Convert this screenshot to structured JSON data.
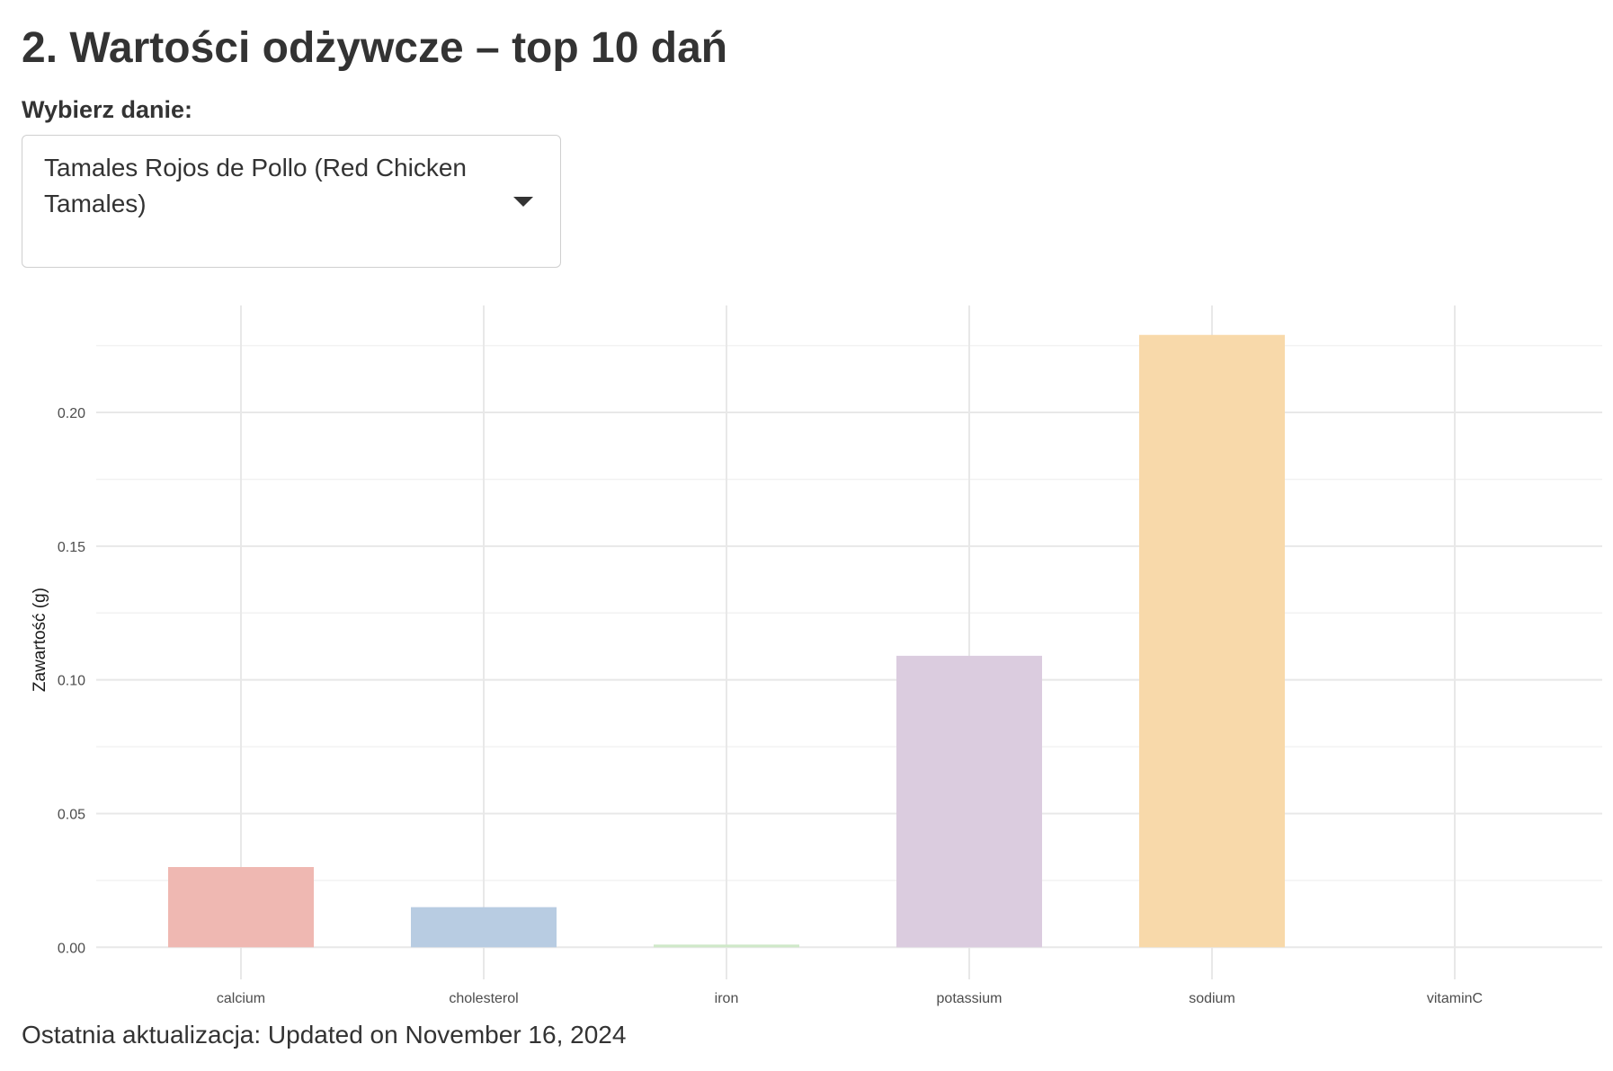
{
  "page": {
    "title": "2. Wartości odżywcze – top 10 dań"
  },
  "dish_select": {
    "label": "Wybierz danie:",
    "selected": "Tamales Rojos de Pollo (Red Chicken Tamales)"
  },
  "footer": {
    "text": "Ostatnia aktualizacja: Updated on November 16, 2024"
  },
  "chart_data": {
    "type": "bar",
    "categories": [
      "calcium",
      "cholesterol",
      "iron",
      "potassium",
      "sodium",
      "vitaminC"
    ],
    "values": [
      0.03,
      0.015,
      0.001,
      0.109,
      0.229,
      0
    ],
    "colors": [
      "#efb8b2",
      "#b8cce2",
      "#cfe8c8",
      "#dbccdf",
      "#f8d9aa",
      "#fbfbd0"
    ],
    "xlabel": "",
    "ylabel": "Zawartość (g)",
    "ylim": [
      -0.012,
      0.24
    ],
    "yticks": [
      0,
      0.05,
      0.1,
      0.15,
      0.2
    ],
    "ytick_labels": [
      "0.00",
      "0.05",
      "0.10",
      "0.15",
      "0.20"
    ],
    "grid": true,
    "legend": "none"
  }
}
